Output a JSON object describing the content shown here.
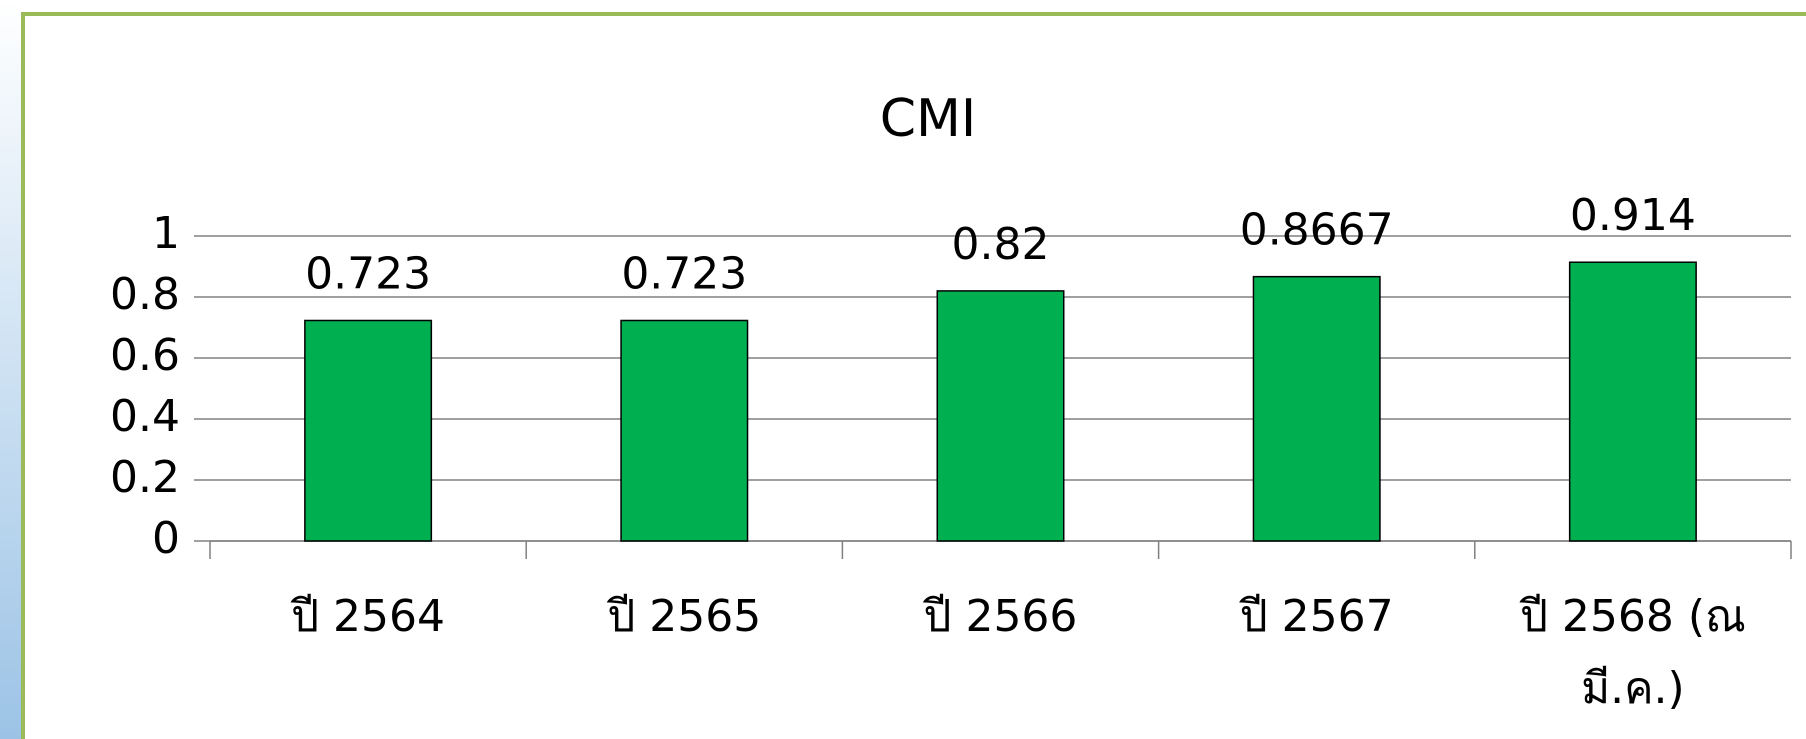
{
  "chart_data": {
    "type": "bar",
    "title": "CMI",
    "categories": [
      "ปี 2564",
      "ปี 2565",
      "ปี 2566",
      "ปี 2567",
      "ปี 2568 (ณ มี.ค.)"
    ],
    "values": [
      0.723,
      0.723,
      0.82,
      0.8667,
      0.914
    ],
    "color": "#00b050",
    "ylim": [
      0,
      1
    ],
    "yticks": [
      0,
      0.2,
      0.4,
      0.6,
      0.8,
      1
    ],
    "grid": true
  }
}
